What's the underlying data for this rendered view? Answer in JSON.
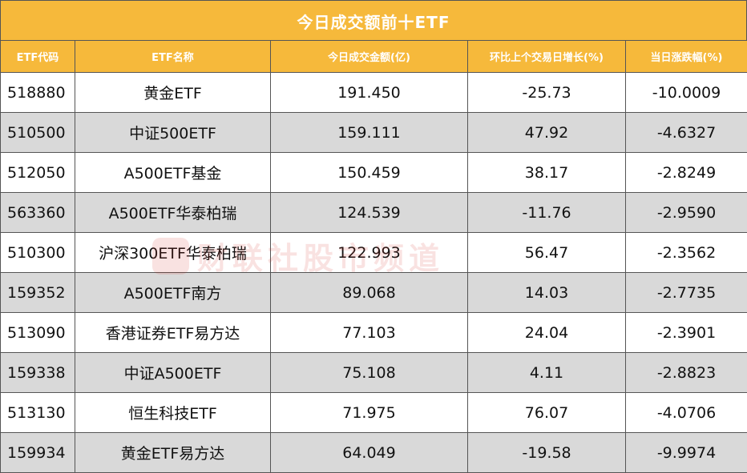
{
  "title": "今日成交额前十ETF",
  "headers": [
    "ETF代码",
    "ETF名称",
    "今日成交金额(亿)",
    "环比上个交易日增长(%)",
    "当日涨跌幅(%)"
  ],
  "rows": [
    {
      "code": "518880",
      "name": "黄金ETF",
      "turnover": "191.450",
      "growth": "-25.73",
      "change": "-10.0009"
    },
    {
      "code": "510500",
      "name": "中证500ETF",
      "turnover": "159.111",
      "growth": "47.92",
      "change": "-4.6327"
    },
    {
      "code": "512050",
      "name": "A500ETF基金",
      "turnover": "150.459",
      "growth": "38.17",
      "change": "-2.8249"
    },
    {
      "code": "563360",
      "name": "A500ETF华泰柏瑞",
      "turnover": "124.539",
      "growth": "-11.76",
      "change": "-2.9590"
    },
    {
      "code": "510300",
      "name": "沪深300ETF华泰柏瑞",
      "turnover": "122.993",
      "growth": "56.47",
      "change": "-2.3562"
    },
    {
      "code": "159352",
      "name": "A500ETF南方",
      "turnover": "89.068",
      "growth": "14.03",
      "change": "-2.7735"
    },
    {
      "code": "513090",
      "name": "香港证券ETF易方达",
      "turnover": "77.103",
      "growth": "24.04",
      "change": "-2.3901"
    },
    {
      "code": "159338",
      "name": "中证A500ETF",
      "turnover": "75.108",
      "growth": "4.11",
      "change": "-2.8823"
    },
    {
      "code": "513130",
      "name": "恒生科技ETF",
      "turnover": "71.975",
      "growth": "76.07",
      "change": "-4.0706"
    },
    {
      "code": "159934",
      "name": "黄金ETF易方达",
      "turnover": "64.049",
      "growth": "-19.58",
      "change": "-9.9974"
    }
  ],
  "watermark": "财联社股市频道",
  "colors": {
    "header": "#f6b93b",
    "header_text": "#ffffff",
    "stripe": "#d9d9d9",
    "border": "#555555"
  }
}
